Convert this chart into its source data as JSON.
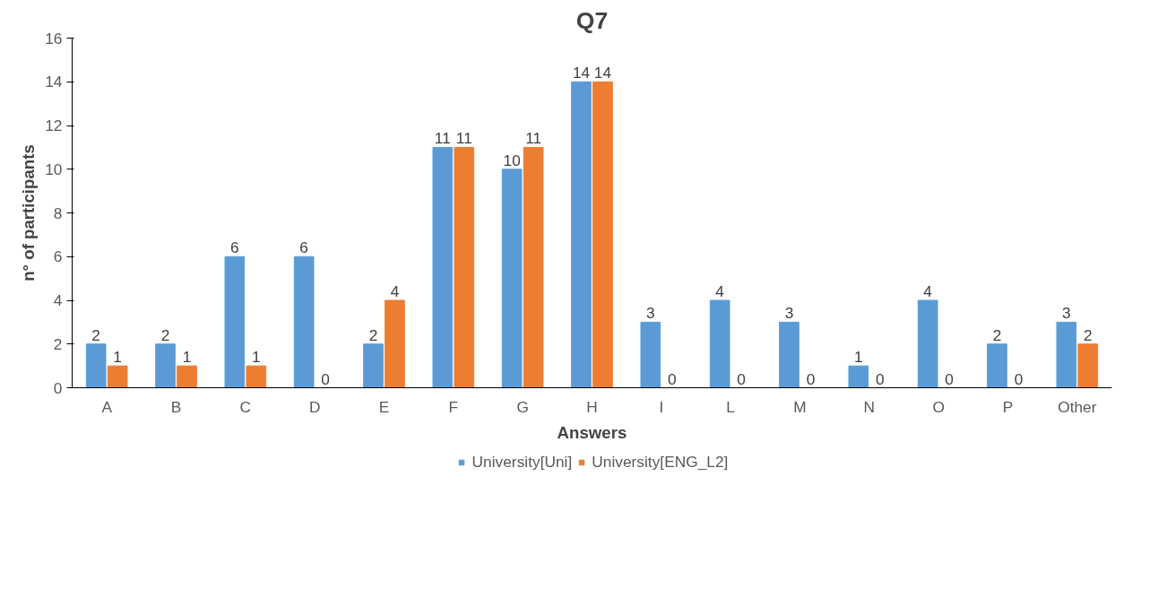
{
  "chart_data": {
    "type": "bar",
    "title": "Q7",
    "xlabel": "Answers",
    "ylabel": "n° of participants",
    "categories": [
      "A",
      "B",
      "C",
      "D",
      "E",
      "F",
      "G",
      "H",
      "I",
      "L",
      "M",
      "N",
      "O",
      "P",
      "Other"
    ],
    "series": [
      {
        "name": "University[Uni]",
        "color": "#5b9bd5",
        "values": [
          2,
          2,
          6,
          6,
          2,
          11,
          10,
          14,
          3,
          4,
          3,
          1,
          4,
          2,
          3
        ]
      },
      {
        "name": "University[ENG_L2]",
        "color": "#ed7d31",
        "values": [
          1,
          1,
          1,
          0,
          4,
          11,
          11,
          14,
          0,
          0,
          0,
          0,
          0,
          0,
          2
        ]
      }
    ],
    "ylim": [
      0,
      16
    ],
    "yticks": [
      0,
      2,
      4,
      6,
      8,
      10,
      12,
      14,
      16
    ],
    "grid": false,
    "legend": "bottom",
    "data_labels": true
  }
}
